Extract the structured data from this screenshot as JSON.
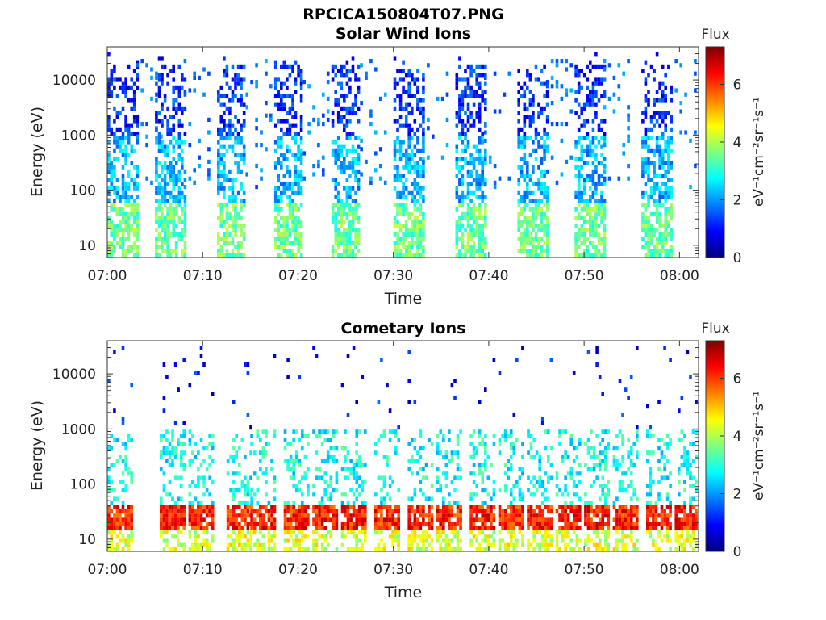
{
  "figure_title": "RPCICA150804T07.PNG",
  "chart_data": [
    {
      "type": "heatmap",
      "title": "Solar Wind Ions",
      "xlabel": "Time",
      "ylabel": "Energy (eV)",
      "x_ticks": [
        "07:00",
        "07:10",
        "07:20",
        "07:30",
        "07:40",
        "07:50",
        "08:00"
      ],
      "xlim": [
        "07:00",
        "08:02"
      ],
      "y_scale": "log",
      "y_ticks": [
        10,
        100,
        1000,
        10000
      ],
      "ylim": [
        6,
        40000
      ],
      "colorbar": {
        "title": "Flux",
        "label": "eV⁻¹cm⁻²sr⁻¹s⁻¹",
        "ticks": [
          0,
          2,
          4,
          6
        ],
        "range": [
          0,
          7.3
        ],
        "colormap": "jet"
      },
      "bursts_start_minutes": [
        0,
        5,
        11.5,
        17.5,
        23.5,
        30,
        36.5,
        43,
        49,
        56
      ],
      "burst_duration_minutes": 3,
      "typical_flux": {
        "low_energy_10_50_eV": 3.5,
        "mid_100_1000_eV": 2.2,
        "high_1000_20000_eV": 1.2
      }
    },
    {
      "type": "heatmap",
      "title": "Cometary Ions",
      "xlabel": "Time",
      "ylabel": "Energy (eV)",
      "x_ticks": [
        "07:00",
        "07:10",
        "07:20",
        "07:30",
        "07:40",
        "07:50",
        "08:00"
      ],
      "xlim": [
        "07:00",
        "08:02"
      ],
      "y_scale": "log",
      "y_ticks": [
        10,
        100,
        1000,
        10000
      ],
      "ylim": [
        6,
        40000
      ],
      "colorbar": {
        "title": "Flux",
        "label": "eV⁻¹cm⁻²sr⁻¹s⁻¹",
        "ticks": [
          0,
          2,
          4,
          6
        ],
        "range": [
          0,
          7.3
        ],
        "colormap": "jet"
      },
      "bursts_start_minutes": [
        0,
        5.5,
        8.5,
        12.5,
        15,
        18.5,
        21.5,
        24.5,
        28,
        31.5,
        34.5,
        38,
        41,
        44,
        47,
        50,
        53,
        56.5,
        59.5
      ],
      "peak_energy_band_eV": [
        15,
        45
      ],
      "typical_flux": {
        "peak_band": 6.2,
        "mid_100_1000_eV": 2.8,
        "sparse_high_energy": 1.0
      }
    }
  ]
}
